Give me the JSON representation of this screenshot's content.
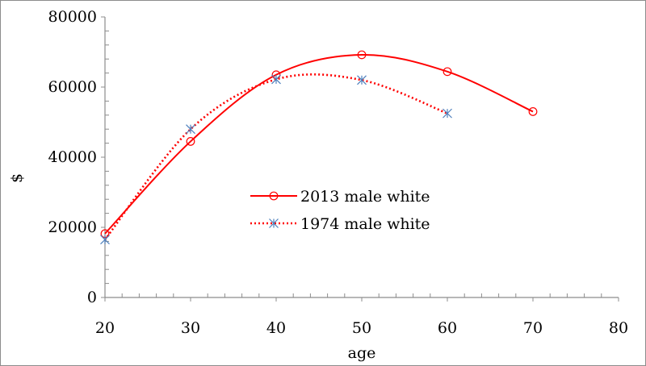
{
  "chart_data": {
    "type": "line",
    "xlabel": "age",
    "ylabel": "$",
    "xlim": [
      20,
      80
    ],
    "ylim": [
      0,
      80000
    ],
    "x_ticks": [
      "20",
      "30",
      "40",
      "50",
      "60",
      "70",
      "80"
    ],
    "y_ticks": [
      "0",
      "20000",
      "40000",
      "60000",
      "80000"
    ],
    "grid": false,
    "legend_position": "center",
    "series": [
      {
        "name": "2013 male white",
        "color": "#ff0000",
        "line_style": "solid",
        "marker": "circle",
        "smooth": true,
        "x": [
          20,
          30,
          40,
          50,
          60,
          70
        ],
        "y": [
          18200,
          44500,
          63500,
          69200,
          64400,
          53000
        ]
      },
      {
        "name": "1974 male white",
        "color": "#ff0000",
        "marker_color": "#4f81bd",
        "line_style": "dotted",
        "marker": "asterisk",
        "smooth": true,
        "x": [
          20,
          30,
          40,
          50,
          60
        ],
        "y": [
          16500,
          48000,
          62200,
          62000,
          52500
        ]
      }
    ]
  }
}
